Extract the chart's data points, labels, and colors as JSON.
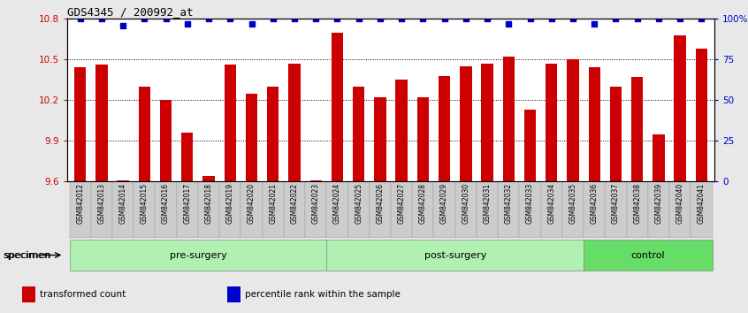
{
  "title": "GDS4345 / 200992_at",
  "categories": [
    "GSM842012",
    "GSM842013",
    "GSM842014",
    "GSM842015",
    "GSM842016",
    "GSM842017",
    "GSM842018",
    "GSM842019",
    "GSM842020",
    "GSM842021",
    "GSM842022",
    "GSM842023",
    "GSM842024",
    "GSM842025",
    "GSM842026",
    "GSM842027",
    "GSM842028",
    "GSM842029",
    "GSM842030",
    "GSM842031",
    "GSM842032",
    "GSM842033",
    "GSM842034",
    "GSM842035",
    "GSM842036",
    "GSM842037",
    "GSM842038",
    "GSM842039",
    "GSM842040",
    "GSM842041"
  ],
  "bar_values": [
    10.44,
    10.46,
    9.61,
    10.3,
    10.2,
    9.96,
    9.64,
    10.46,
    10.25,
    10.3,
    10.47,
    9.61,
    10.7,
    10.3,
    10.22,
    10.35,
    10.22,
    10.38,
    10.45,
    10.47,
    10.52,
    10.13,
    10.47,
    10.5,
    10.44,
    10.3,
    10.37,
    9.95,
    10.68,
    10.58
  ],
  "blue_dot_values": [
    100,
    100,
    96,
    100,
    100,
    97,
    100,
    100,
    97,
    100,
    100,
    100,
    100,
    100,
    100,
    100,
    100,
    100,
    100,
    100,
    97,
    100,
    100,
    100,
    97,
    100,
    100,
    100,
    100,
    100
  ],
  "groups": [
    {
      "label": "pre-surgery",
      "start": 0,
      "end": 12
    },
    {
      "label": "post-surgery",
      "start": 12,
      "end": 24
    },
    {
      "label": "control",
      "start": 24,
      "end": 30
    }
  ],
  "bar_color": "#cc0000",
  "dot_color": "#0000cc",
  "ylim_left": [
    9.6,
    10.8
  ],
  "ylim_right": [
    0,
    100
  ],
  "yticks_left": [
    9.6,
    9.9,
    10.2,
    10.5,
    10.8
  ],
  "yticks_right": [
    0,
    25,
    50,
    75,
    100
  ],
  "ytick_labels_left": [
    "9.6",
    "9.9",
    "10.2",
    "10.5",
    "10.8"
  ],
  "ytick_labels_right": [
    "0",
    "25",
    "50",
    "75",
    "100%"
  ],
  "grid_lines": [
    9.9,
    10.2,
    10.5
  ],
  "plot_bg_color": "#ffffff",
  "outer_bg_color": "#e8e8e8",
  "group_color_light": "#b0f0b0",
  "group_color_dark": "#66dd66",
  "specimen_label": "specimen",
  "legend_items": [
    {
      "color": "#cc0000",
      "label": "transformed count"
    },
    {
      "color": "#0000cc",
      "label": "percentile rank within the sample"
    }
  ]
}
